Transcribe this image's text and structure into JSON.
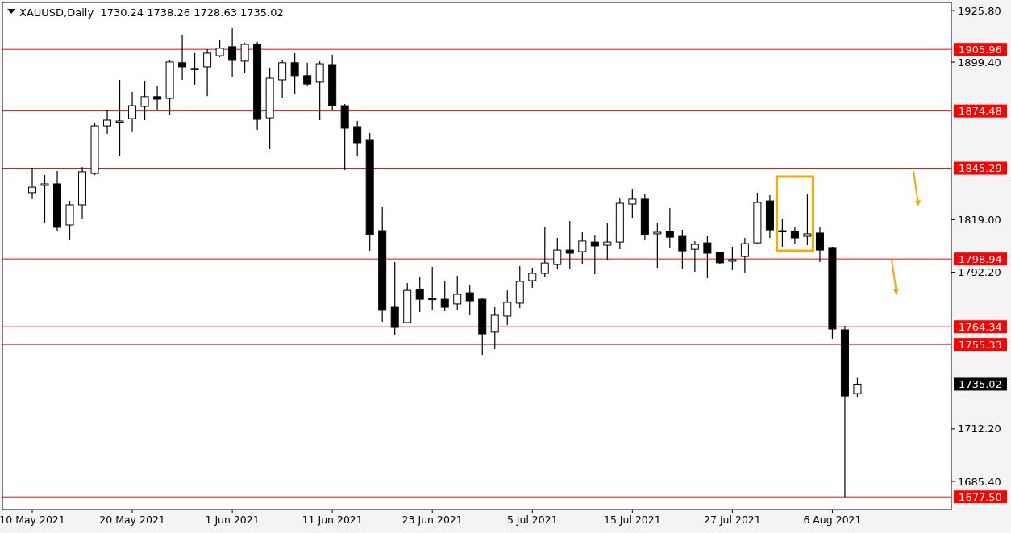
{
  "chart_data": {
    "type": "candlestick",
    "title": "XAUUSD,Daily  1730.24 1738.26 1728.63 1735.02",
    "categories": [
      "10 May 2021",
      null,
      null,
      null,
      null,
      null,
      null,
      null,
      "20 May 2021",
      null,
      null,
      null,
      null,
      null,
      null,
      null,
      "1 Jun 2021",
      null,
      null,
      null,
      null,
      null,
      null,
      null,
      "11 Jun 2021",
      null,
      null,
      null,
      null,
      null,
      null,
      null,
      "23 Jun 2021",
      null,
      null,
      null,
      null,
      null,
      null,
      null,
      "5 Jul 2021",
      null,
      null,
      null,
      null,
      null,
      null,
      null,
      "15 Jul 2021",
      null,
      null,
      null,
      null,
      null,
      null,
      null,
      "27 Jul 2021",
      null,
      null,
      null,
      null,
      null,
      null,
      null,
      "6 Aug 2021",
      null,
      null,
      null,
      null,
      null,
      null,
      null,
      null,
      null
    ],
    "ohlc": [
      [
        1832.8,
        1845.5,
        1829.5,
        1835.6
      ],
      [
        1836.5,
        1841.8,
        1817.5,
        1837.3
      ],
      [
        1837.3,
        1843.9,
        1813.0,
        1815.1
      ],
      [
        1816.3,
        1828.6,
        1808.5,
        1826.6
      ],
      [
        1826.6,
        1845.9,
        1819.2,
        1843.5
      ],
      [
        1842.6,
        1868.6,
        1841.8,
        1866.9
      ],
      [
        1866.9,
        1875.2,
        1862.8,
        1869.8
      ],
      [
        1869.4,
        1890.4,
        1851.7,
        1869.4
      ],
      [
        1870.6,
        1884.2,
        1863.7,
        1877.2
      ],
      [
        1876.8,
        1889.6,
        1869.8,
        1881.8
      ],
      [
        1881.8,
        1887.1,
        1875.2,
        1880.5
      ],
      [
        1880.9,
        1900.3,
        1872.3,
        1899.5
      ],
      [
        1899.1,
        1913.0,
        1890.4,
        1897.0
      ],
      [
        1896.2,
        1904.0,
        1887.9,
        1896.0
      ],
      [
        1897.0,
        1906.0,
        1882.1,
        1904.0
      ],
      [
        1902.7,
        1911.0,
        1901.9,
        1906.5
      ],
      [
        1907.3,
        1916.7,
        1892.0,
        1900.3
      ],
      [
        1899.9,
        1909.3,
        1894.1,
        1908.5
      ],
      [
        1908.5,
        1909.7,
        1864.9,
        1870.2
      ],
      [
        1871.0,
        1896.6,
        1855.0,
        1891.2
      ],
      [
        1890.4,
        1900.3,
        1881.3,
        1899.1
      ],
      [
        1899.1,
        1904.0,
        1883.4,
        1892.5
      ],
      [
        1892.5,
        1899.1,
        1887.1,
        1888.3
      ],
      [
        1889.2,
        1899.9,
        1869.8,
        1898.6
      ],
      [
        1898.2,
        1903.2,
        1874.8,
        1877.2
      ],
      [
        1877.2,
        1878.0,
        1844.3,
        1865.7
      ],
      [
        1866.5,
        1869.4,
        1851.3,
        1858.3
      ],
      [
        1859.5,
        1863.2,
        1803.1,
        1811.4
      ],
      [
        1813.4,
        1825.4,
        1766.9,
        1772.7
      ],
      [
        1774.3,
        1797.4,
        1760.3,
        1764.0
      ],
      [
        1766.5,
        1786.7,
        1766.1,
        1782.9
      ],
      [
        1783.4,
        1789.9,
        1771.8,
        1778.4
      ],
      [
        1778.8,
        1794.9,
        1772.7,
        1778.6
      ],
      [
        1778.4,
        1787.9,
        1772.3,
        1774.3
      ],
      [
        1776.0,
        1790.4,
        1773.1,
        1780.9
      ],
      [
        1781.7,
        1785.8,
        1770.2,
        1777.6
      ],
      [
        1778.4,
        1778.8,
        1750.0,
        1760.7
      ],
      [
        1761.6,
        1774.3,
        1752.9,
        1770.2
      ],
      [
        1769.8,
        1782.9,
        1765.2,
        1776.8
      ],
      [
        1776.4,
        1795.3,
        1773.9,
        1787.5
      ],
      [
        1787.9,
        1794.5,
        1784.2,
        1791.6
      ],
      [
        1791.6,
        1815.1,
        1789.5,
        1796.9
      ],
      [
        1796.1,
        1809.7,
        1793.7,
        1803.5
      ],
      [
        1803.5,
        1818.4,
        1793.7,
        1801.9
      ],
      [
        1802.7,
        1812.6,
        1796.1,
        1808.1
      ],
      [
        1807.6,
        1811.0,
        1791.2,
        1805.6
      ],
      [
        1806.0,
        1817.1,
        1798.2,
        1807.6
      ],
      [
        1807.6,
        1829.9,
        1803.9,
        1827.4
      ],
      [
        1827.0,
        1834.4,
        1820.0,
        1829.5
      ],
      [
        1829.5,
        1831.9,
        1808.5,
        1811.4
      ],
      [
        1811.8,
        1817.5,
        1794.5,
        1812.6
      ],
      [
        1813.0,
        1824.9,
        1804.8,
        1810.1
      ],
      [
        1810.5,
        1813.8,
        1794.1,
        1803.1
      ],
      [
        1803.9,
        1808.1,
        1792.4,
        1806.4
      ],
      [
        1807.2,
        1810.5,
        1789.1,
        1801.9
      ],
      [
        1802.3,
        1802.7,
        1796.1,
        1797.0
      ],
      [
        1797.8,
        1805.2,
        1793.2,
        1798.6
      ],
      [
        1800.2,
        1809.7,
        1792.0,
        1806.8
      ],
      [
        1807.2,
        1832.8,
        1806.8,
        1827.8
      ],
      [
        1828.6,
        1831.5,
        1809.7,
        1813.8
      ],
      [
        1813.4,
        1819.6,
        1805.2,
        1813.2
      ],
      [
        1813.0,
        1815.1,
        1806.8,
        1809.7
      ],
      [
        1810.5,
        1831.9,
        1806.0,
        1811.8
      ],
      [
        1812.2,
        1815.1,
        1797.4,
        1803.5
      ],
      [
        1804.8,
        1805.2,
        1758.3,
        1763.2
      ],
      [
        1762.8,
        1764.8,
        1677.5,
        1729.0
      ],
      [
        1730.24,
        1738.26,
        1728.63,
        1735.02
      ],
      null,
      null,
      null,
      null,
      null,
      null,
      null
    ],
    "ylim": [
      1671.0,
      1929.9
    ],
    "yticks": [
      {
        "value": 1925.8,
        "label": "1925.80"
      },
      {
        "value": 1899.4,
        "label": "1899.40"
      },
      {
        "value": 1819.0,
        "label": "1819.00"
      },
      {
        "value": 1792.2,
        "label": "1792.20"
      },
      {
        "value": 1712.2,
        "label": "1712.20"
      },
      {
        "value": 1685.4,
        "label": "1685.40"
      }
    ],
    "ref_lines": [
      {
        "axis": "y",
        "value": 1905.96,
        "label": "1905.96",
        "color": "#ff0000"
      },
      {
        "axis": "y",
        "value": 1874.48,
        "label": "1874.48",
        "color": "#ff0000"
      },
      {
        "axis": "y",
        "value": 1845.29,
        "label": "1845.29",
        "color": "#ff0000"
      },
      {
        "axis": "y",
        "value": 1798.94,
        "label": "1798.94",
        "color": "#ff0000"
      },
      {
        "axis": "y",
        "value": 1764.34,
        "label": "1764.34",
        "color": "#ff0000"
      },
      {
        "axis": "y",
        "value": 1755.33,
        "label": "1755.33",
        "color": "#ff0000"
      },
      {
        "axis": "y",
        "value": 1677.5,
        "label": "1677.50",
        "color": "#ff0000"
      }
    ],
    "annotations": [
      "1735.02"
    ]
  }
}
